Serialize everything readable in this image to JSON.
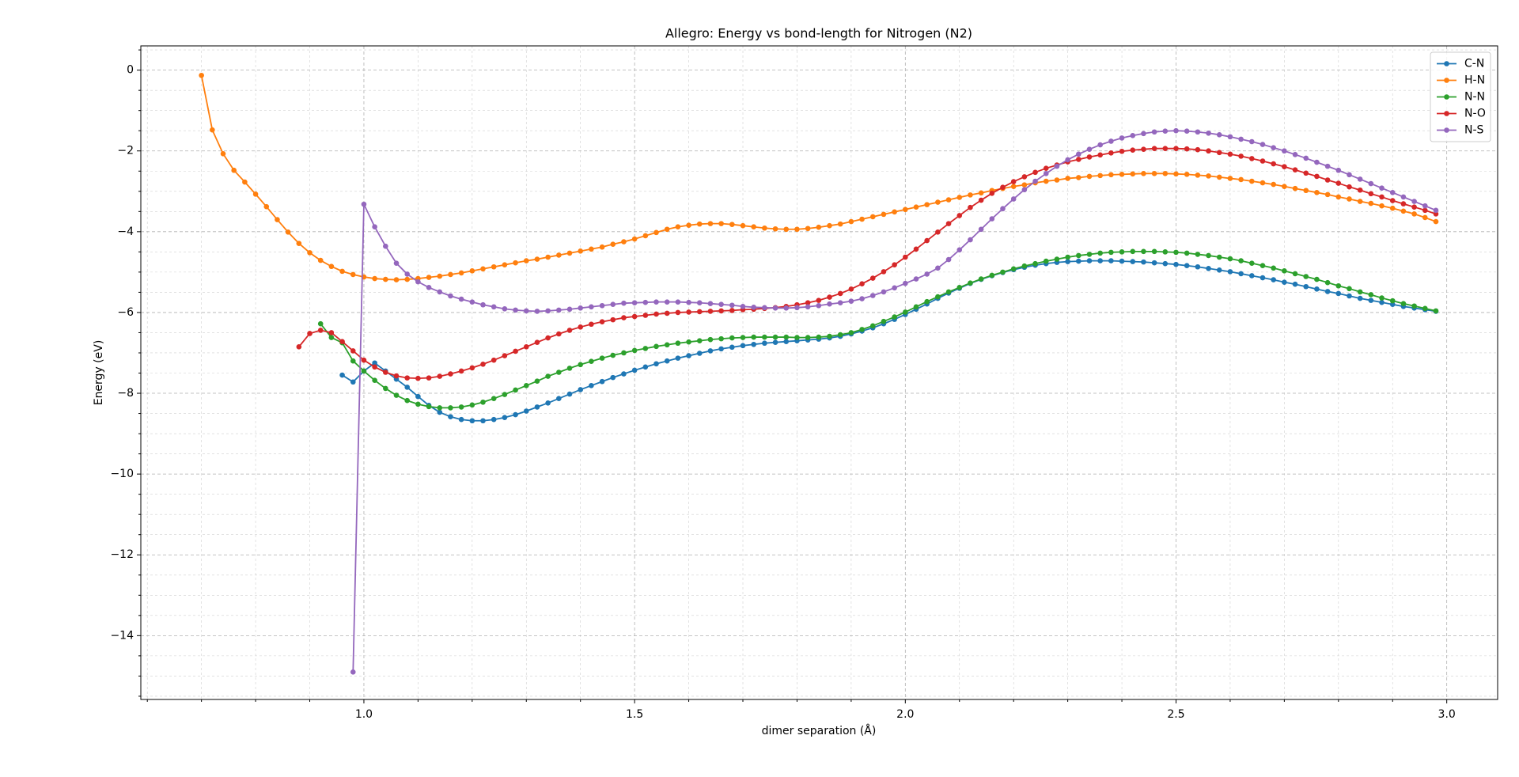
{
  "chart_data": {
    "type": "line",
    "title": "Allegro: Energy vs bond-length for Nitrogen (N2)",
    "x_label": "dimer separation (Å)",
    "y_label": "Energy (eV)",
    "xlim": [
      0.588,
      3.094
    ],
    "ylim": [
      -15.58,
      0.6
    ],
    "xticks": [
      {
        "value": 1,
        "label": "1.0"
      },
      {
        "value": 1.5,
        "label": "1.5"
      },
      {
        "value": 2,
        "label": "2.0"
      },
      {
        "value": 2.5,
        "label": "2.5"
      },
      {
        "value": 3,
        "label": "3.0"
      }
    ],
    "yticks": [
      0,
      {
        "value": -2,
        "label": "−2"
      },
      {
        "value": -4,
        "label": "−4"
      },
      {
        "value": -6,
        "label": "−6"
      },
      {
        "value": -8,
        "label": "−8"
      },
      {
        "value": -10,
        "label": "−10"
      },
      {
        "value": -12,
        "label": "−12"
      },
      {
        "value": -14,
        "label": "−14"
      }
    ],
    "xminorticks": [
      0.6,
      0.7,
      0.8,
      0.9,
      1.1,
      1.2,
      1.3,
      1.4,
      1.6,
      1.7,
      1.8,
      1.9,
      2.1,
      2.2,
      2.3,
      2.4,
      2.6,
      2.7,
      2.8,
      2.9
    ],
    "yminorticks": [
      0.5,
      -0.5,
      -1,
      -1.5,
      -2.5,
      -3,
      -3.5,
      -4.5,
      -5,
      -5.5,
      -6.5,
      -7,
      -7.5,
      -8.5,
      -9,
      -9.5,
      -10.5,
      -11,
      -11.5,
      -12.5,
      -13,
      -13.5,
      -14.5,
      -15,
      -15.5
    ],
    "grid": true,
    "legend": "upper right",
    "x": [
      0.7,
      0.72,
      0.74,
      0.76,
      0.78,
      0.8,
      0.82,
      0.84,
      0.86,
      0.88,
      0.9,
      0.92,
      0.94,
      0.96,
      0.98,
      1,
      1.02,
      1.04,
      1.06,
      1.08,
      1.1,
      1.12,
      1.14,
      1.16,
      1.18,
      1.2,
      1.22,
      1.24,
      1.26,
      1.28,
      1.3,
      1.32,
      1.34,
      1.36,
      1.38,
      1.4,
      1.42,
      1.44,
      1.46,
      1.48,
      1.5,
      1.52,
      1.54,
      1.56,
      1.58,
      1.6,
      1.62,
      1.64,
      1.66,
      1.68,
      1.7,
      1.72,
      1.74,
      1.76,
      1.78,
      1.8,
      1.82,
      1.84,
      1.86,
      1.88,
      1.9,
      1.92,
      1.94,
      1.96,
      1.98,
      2,
      2.02,
      2.04,
      2.06,
      2.08,
      2.1,
      2.12,
      2.14,
      2.16,
      2.18,
      2.2,
      2.22,
      2.24,
      2.26,
      2.28,
      2.3,
      2.32,
      2.34,
      2.36,
      2.38,
      2.4,
      2.42,
      2.44,
      2.46,
      2.48,
      2.5,
      2.52,
      2.54,
      2.56,
      2.58,
      2.6,
      2.62,
      2.64,
      2.66,
      2.68,
      2.7,
      2.72,
      2.74,
      2.76,
      2.78,
      2.8,
      2.82,
      2.84,
      2.86,
      2.88,
      2.9,
      2.92,
      2.94,
      2.96,
      2.98
    ],
    "series": [
      {
        "name": "C-N",
        "color": "#1f77b4",
        "values": [
          null,
          null,
          null,
          null,
          null,
          null,
          null,
          null,
          null,
          null,
          null,
          null,
          null,
          -7.55,
          -7.72,
          -7.45,
          -7.25,
          -7.45,
          -7.65,
          -7.85,
          -8.08,
          -8.3,
          -8.47,
          -8.58,
          -8.65,
          -8.68,
          -8.68,
          -8.65,
          -8.6,
          -8.53,
          -8.44,
          -8.34,
          -8.24,
          -8.13,
          -8.02,
          -7.91,
          -7.81,
          -7.71,
          -7.61,
          -7.52,
          -7.43,
          -7.35,
          -7.27,
          -7.2,
          -7.13,
          -7.07,
          -7.01,
          -6.95,
          -6.9,
          -6.86,
          -6.82,
          -6.79,
          -6.76,
          -6.74,
          -6.72,
          -6.7,
          -6.68,
          -6.66,
          -6.63,
          -6.59,
          -6.53,
          -6.46,
          -6.38,
          -6.28,
          -6.17,
          -6.05,
          -5.92,
          -5.79,
          -5.65,
          -5.52,
          -5.4,
          -5.28,
          -5.18,
          -5.09,
          -5.01,
          -4.94,
          -4.88,
          -4.83,
          -4.79,
          -4.76,
          -4.74,
          -4.73,
          -4.72,
          -4.72,
          -4.72,
          -4.73,
          -4.74,
          -4.75,
          -4.77,
          -4.79,
          -4.81,
          -4.84,
          -4.87,
          -4.91,
          -4.95,
          -4.99,
          -5.04,
          -5.09,
          -5.14,
          -5.19,
          -5.25,
          -5.3,
          -5.36,
          -5.42,
          -5.48,
          -5.53,
          -5.59,
          -5.65,
          -5.7,
          -5.75,
          -5.8,
          -5.85,
          -5.89,
          -5.93,
          -5.97
        ]
      },
      {
        "name": "H-N",
        "color": "#ff7f0e",
        "values": [
          -0.13,
          -1.48,
          -2.07,
          -2.48,
          -2.77,
          -3.07,
          -3.38,
          -3.7,
          -4.01,
          -4.29,
          -4.52,
          -4.71,
          -4.86,
          -4.98,
          -5.06,
          -5.12,
          -5.16,
          -5.18,
          -5.19,
          -5.18,
          -5.16,
          -5.13,
          -5.1,
          -5.06,
          -5.02,
          -4.97,
          -4.92,
          -4.87,
          -4.82,
          -4.77,
          -4.72,
          -4.68,
          -4.63,
          -4.58,
          -4.53,
          -4.48,
          -4.43,
          -4.38,
          -4.31,
          -4.25,
          -4.18,
          -4.1,
          -4.02,
          -3.94,
          -3.88,
          -3.84,
          -3.81,
          -3.8,
          -3.8,
          -3.82,
          -3.85,
          -3.88,
          -3.91,
          -3.93,
          -3.94,
          -3.94,
          -3.92,
          -3.89,
          -3.85,
          -3.81,
          -3.75,
          -3.69,
          -3.63,
          -3.57,
          -3.51,
          -3.45,
          -3.39,
          -3.33,
          -3.27,
          -3.21,
          -3.15,
          -3.09,
          -3.04,
          -2.98,
          -2.93,
          -2.88,
          -2.84,
          -2.79,
          -2.75,
          -2.72,
          -2.68,
          -2.66,
          -2.63,
          -2.61,
          -2.59,
          -2.58,
          -2.57,
          -2.56,
          -2.56,
          -2.56,
          -2.57,
          -2.58,
          -2.6,
          -2.62,
          -2.65,
          -2.68,
          -2.71,
          -2.75,
          -2.79,
          -2.83,
          -2.88,
          -2.93,
          -2.98,
          -3.03,
          -3.08,
          -3.14,
          -3.19,
          -3.25,
          -3.3,
          -3.36,
          -3.42,
          -3.49,
          -3.56,
          -3.65,
          -3.75
        ]
      },
      {
        "name": "N-N",
        "color": "#2ca02c",
        "values": [
          null,
          null,
          null,
          null,
          null,
          null,
          null,
          null,
          null,
          null,
          null,
          -6.28,
          -6.62,
          -6.75,
          -7.2,
          -7.45,
          -7.68,
          -7.88,
          -8.05,
          -8.18,
          -8.27,
          -8.33,
          -8.36,
          -8.36,
          -8.34,
          -8.29,
          -8.22,
          -8.13,
          -8.03,
          -7.92,
          -7.81,
          -7.7,
          -7.58,
          -7.48,
          -7.38,
          -7.29,
          -7.21,
          -7.13,
          -7.06,
          -7.0,
          -6.94,
          -6.89,
          -6.84,
          -6.8,
          -6.76,
          -6.73,
          -6.7,
          -6.67,
          -6.65,
          -6.63,
          -6.62,
          -6.61,
          -6.61,
          -6.61,
          -6.61,
          -6.62,
          -6.62,
          -6.61,
          -6.59,
          -6.55,
          -6.5,
          -6.42,
          -6.33,
          -6.22,
          -6.11,
          -5.99,
          -5.86,
          -5.73,
          -5.61,
          -5.49,
          -5.38,
          -5.27,
          -5.17,
          -5.08,
          -5.0,
          -4.92,
          -4.85,
          -4.79,
          -4.73,
          -4.68,
          -4.63,
          -4.59,
          -4.56,
          -4.53,
          -4.51,
          -4.5,
          -4.49,
          -4.49,
          -4.49,
          -4.5,
          -4.51,
          -4.53,
          -4.56,
          -4.59,
          -4.63,
          -4.67,
          -4.72,
          -4.78,
          -4.84,
          -4.9,
          -4.97,
          -5.04,
          -5.11,
          -5.18,
          -5.26,
          -5.34,
          -5.41,
          -5.49,
          -5.56,
          -5.64,
          -5.71,
          -5.78,
          -5.84,
          -5.9,
          -5.96
        ]
      },
      {
        "name": "N-O",
        "color": "#d62728",
        "values": [
          null,
          null,
          null,
          null,
          null,
          null,
          null,
          null,
          null,
          -6.85,
          -6.52,
          -6.44,
          -6.5,
          -6.72,
          -6.95,
          -7.18,
          -7.35,
          -7.48,
          -7.57,
          -7.62,
          -7.63,
          -7.62,
          -7.58,
          -7.52,
          -7.45,
          -7.37,
          -7.28,
          -7.18,
          -7.07,
          -6.96,
          -6.85,
          -6.74,
          -6.63,
          -6.53,
          -6.44,
          -6.36,
          -6.29,
          -6.23,
          -6.18,
          -6.13,
          -6.1,
          -6.07,
          -6.04,
          -6.02,
          -6.0,
          -5.99,
          -5.98,
          -5.97,
          -5.96,
          -5.95,
          -5.93,
          -5.92,
          -5.9,
          -5.88,
          -5.85,
          -5.81,
          -5.76,
          -5.7,
          -5.62,
          -5.53,
          -5.42,
          -5.29,
          -5.15,
          -4.99,
          -4.82,
          -4.63,
          -4.43,
          -4.22,
          -4.01,
          -3.8,
          -3.6,
          -3.4,
          -3.22,
          -3.05,
          -2.9,
          -2.76,
          -2.64,
          -2.53,
          -2.43,
          -2.35,
          -2.27,
          -2.21,
          -2.15,
          -2.1,
          -2.05,
          -2.01,
          -1.98,
          -1.96,
          -1.94,
          -1.94,
          -1.94,
          -1.95,
          -1.97,
          -2.0,
          -2.04,
          -2.08,
          -2.13,
          -2.19,
          -2.25,
          -2.32,
          -2.39,
          -2.47,
          -2.55,
          -2.63,
          -2.72,
          -2.8,
          -2.89,
          -2.97,
          -3.06,
          -3.14,
          -3.23,
          -3.31,
          -3.39,
          -3.47,
          -3.56
        ]
      },
      {
        "name": "N-S",
        "color": "#9467bd",
        "values": [
          null,
          null,
          null,
          null,
          null,
          null,
          null,
          null,
          null,
          null,
          null,
          null,
          null,
          null,
          -14.9,
          -3.32,
          -3.88,
          -4.36,
          -4.78,
          -5.05,
          -5.24,
          -5.38,
          -5.49,
          -5.59,
          -5.67,
          -5.74,
          -5.81,
          -5.86,
          -5.91,
          -5.94,
          -5.96,
          -5.97,
          -5.96,
          -5.94,
          -5.92,
          -5.89,
          -5.86,
          -5.83,
          -5.8,
          -5.77,
          -5.76,
          -5.75,
          -5.74,
          -5.74,
          -5.74,
          -5.75,
          -5.76,
          -5.78,
          -5.8,
          -5.82,
          -5.85,
          -5.87,
          -5.88,
          -5.89,
          -5.89,
          -5.88,
          -5.86,
          -5.83,
          -5.79,
          -5.76,
          -5.72,
          -5.66,
          -5.58,
          -5.49,
          -5.39,
          -5.28,
          -5.17,
          -5.05,
          -4.9,
          -4.69,
          -4.45,
          -4.2,
          -3.94,
          -3.68,
          -3.43,
          -3.19,
          -2.96,
          -2.75,
          -2.56,
          -2.38,
          -2.22,
          -2.08,
          -1.96,
          -1.85,
          -1.76,
          -1.68,
          -1.62,
          -1.57,
          -1.53,
          -1.51,
          -1.5,
          -1.51,
          -1.53,
          -1.56,
          -1.6,
          -1.65,
          -1.71,
          -1.77,
          -1.84,
          -1.92,
          -2.0,
          -2.09,
          -2.18,
          -2.28,
          -2.38,
          -2.48,
          -2.59,
          -2.7,
          -2.81,
          -2.92,
          -3.03,
          -3.14,
          -3.25,
          -3.36,
          -3.47
        ]
      }
    ]
  }
}
